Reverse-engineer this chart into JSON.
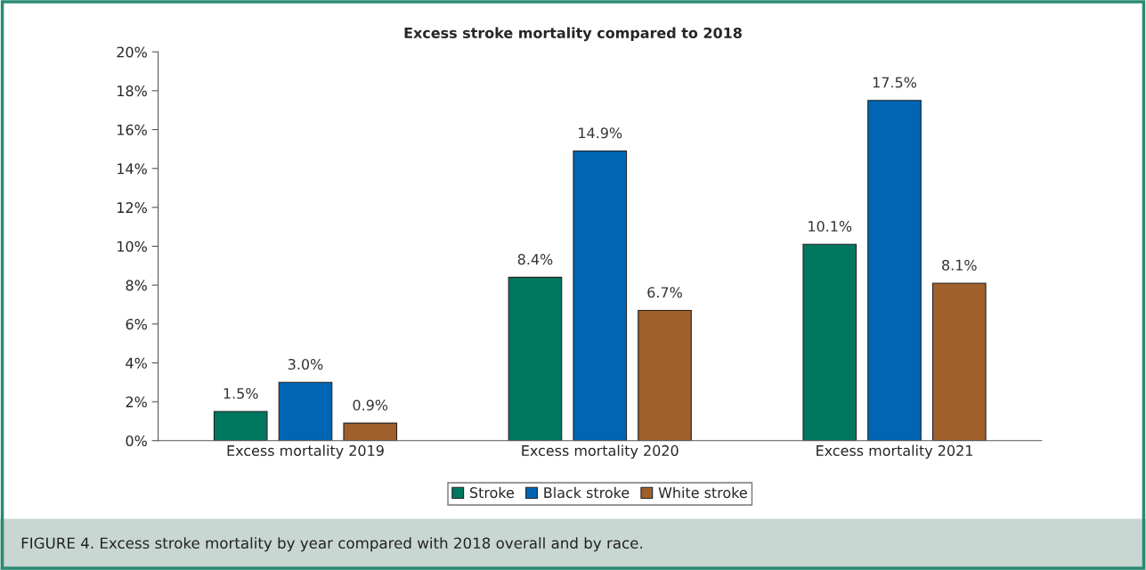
{
  "chart_data": {
    "type": "bar",
    "title": "Excess stroke mortality compared to 2018",
    "categories": [
      "Excess mortality 2019",
      "Excess mortality 2020",
      "Excess mortality 2021"
    ],
    "series": [
      {
        "name": "Stroke",
        "color": "#00775f",
        "values": [
          1.5,
          8.4,
          10.1
        ],
        "value_labels": [
          "1.5%",
          "8.4%",
          "10.1%"
        ]
      },
      {
        "name": "Black stroke",
        "color": "#0066b3",
        "values": [
          3.0,
          14.9,
          17.5
        ],
        "value_labels": [
          "3.0%",
          "14.9%",
          "17.5%"
        ]
      },
      {
        "name": "White stroke",
        "color": "#a0602c",
        "values": [
          0.9,
          6.7,
          8.1
        ],
        "value_labels": [
          "0.9%",
          "6.7%",
          "8.1%"
        ]
      }
    ],
    "ylim": [
      0,
      20
    ],
    "yticks": [
      {
        "value": 0,
        "label": "0%"
      },
      {
        "value": 2,
        "label": "2%"
      },
      {
        "value": 4,
        "label": "4%"
      },
      {
        "value": 6,
        "label": "6%"
      },
      {
        "value": 8,
        "label": "8%"
      },
      {
        "value": 10,
        "label": "10%"
      },
      {
        "value": 12,
        "label": "12%"
      },
      {
        "value": 14,
        "label": "14%"
      },
      {
        "value": 16,
        "label": "16%"
      },
      {
        "value": 18,
        "label": "18%"
      },
      {
        "value": 20,
        "label": "20%"
      }
    ],
    "grid": false,
    "legend": "bottom",
    "annotations": [
      "FIGURE 4. Excess stroke mortality by year compared with 2018 overall and by race."
    ]
  }
}
